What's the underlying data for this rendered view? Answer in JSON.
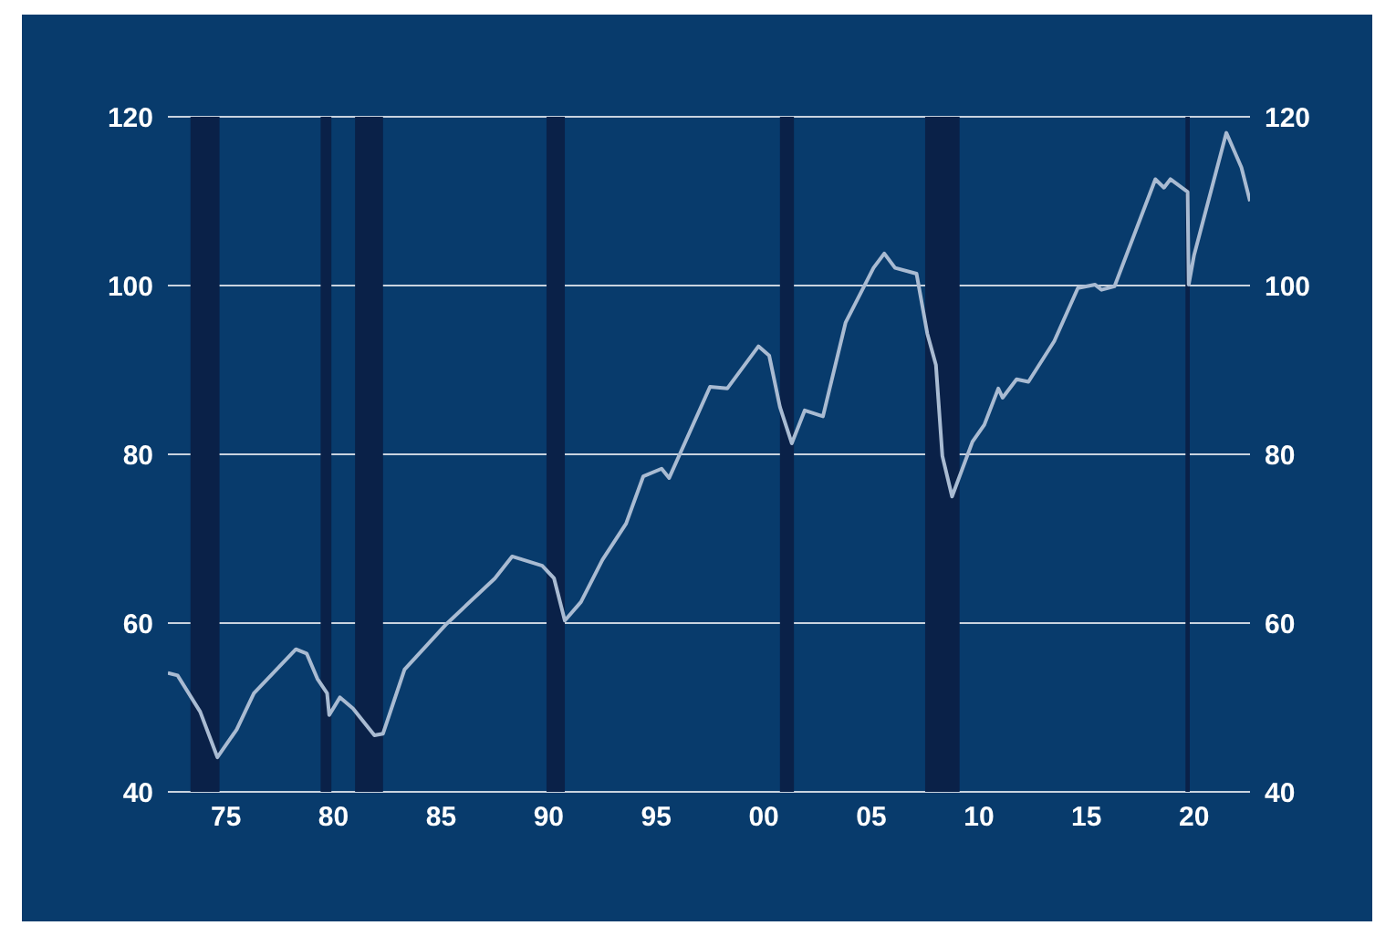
{
  "chart_data": {
    "type": "line",
    "x": [
      1972.3,
      1972.75,
      1973.8,
      1974.6,
      1975.5,
      1976.3,
      1978.25,
      1978.75,
      1979.25,
      1979.7,
      1979.8,
      1980.3,
      1980.9,
      1981.9,
      1982.3,
      1983.3,
      1985.25,
      1987.5,
      1988.3,
      1989.7,
      1990.25,
      1990.75,
      1991.5,
      1992.5,
      1993.6,
      1994.4,
      1995.25,
      1995.6,
      1997.5,
      1998.3,
      1999.75,
      2000.25,
      2000.75,
      2001.3,
      2001.9,
      2002.75,
      2003.8,
      2005.1,
      2005.6,
      2006.1,
      2007.1,
      2007.6,
      2008.0,
      2008.3,
      2008.75,
      2009.7,
      2010.25,
      2010.9,
      2011.1,
      2011.75,
      2012.3,
      2013.5,
      2014.6,
      2015.4,
      2015.7,
      2016.3,
      2018.2,
      2018.6,
      2018.9,
      2019.7,
      2019.75,
      2020.0,
      2021.5,
      2022.2,
      2022.6
    ],
    "series": [
      {
        "color": "#a9bbd2",
        "values": [
          54.1,
          53.8,
          49.5,
          44.1,
          47.4,
          51.7,
          56.9,
          56.4,
          53.4,
          51.7,
          49.1,
          51.2,
          49.9,
          46.7,
          46.9,
          54.5,
          59.9,
          65.3,
          67.9,
          66.8,
          65.3,
          60.3,
          62.5,
          67.5,
          71.8,
          77.4,
          78.3,
          77.2,
          88.0,
          87.8,
          92.8,
          91.7,
          85.6,
          81.3,
          85.2,
          84.5,
          95.6,
          102.1,
          103.8,
          102.1,
          101.4,
          94.3,
          90.6,
          79.8,
          75.0,
          81.5,
          83.5,
          87.8,
          86.7,
          88.9,
          88.6,
          93.4,
          99.7,
          100.1,
          99.5,
          99.9,
          112.6,
          111.6,
          112.6,
          111.1,
          100.1,
          103.6,
          118.1,
          114.0,
          110.0
        ]
      }
    ],
    "xlim": [
      1972.3,
      2022.6
    ],
    "xticks": [
      {
        "value": 1975,
        "label": "75"
      },
      {
        "value": 1980,
        "label": "80"
      },
      {
        "value": 1985,
        "label": "85"
      },
      {
        "value": 1990,
        "label": "90"
      },
      {
        "value": 1995,
        "label": "95"
      },
      {
        "value": 2000,
        "label": "00"
      },
      {
        "value": 2005,
        "label": "05"
      },
      {
        "value": 2010,
        "label": "10"
      },
      {
        "value": 2015,
        "label": "15"
      },
      {
        "value": 2020,
        "label": "20"
      }
    ],
    "ylim": [
      40,
      120
    ],
    "yticks": [
      40,
      60,
      80,
      100,
      120
    ],
    "y2lim": [
      40,
      120
    ],
    "y2ticks": [
      40,
      60,
      80,
      100,
      120
    ],
    "grid": "y",
    "legend": false,
    "marker": "none",
    "line_style": "solid",
    "bands": [
      {
        "axis": "x",
        "from": 1973.35,
        "to": 1974.7,
        "color": "#0a2148"
      },
      {
        "axis": "x",
        "from": 1979.4,
        "to": 1979.9,
        "color": "#0a2148"
      },
      {
        "axis": "x",
        "from": 1981.0,
        "to": 1982.3,
        "color": "#0a2148"
      },
      {
        "axis": "x",
        "from": 1989.9,
        "to": 1990.75,
        "color": "#0a2148"
      },
      {
        "axis": "x",
        "from": 2000.75,
        "to": 2001.4,
        "color": "#0a2148"
      },
      {
        "axis": "x",
        "from": 2007.5,
        "to": 2009.1,
        "color": "#0a2148"
      },
      {
        "axis": "x",
        "from": 2019.6,
        "to": 2019.8,
        "color": "#0a2148"
      }
    ]
  }
}
